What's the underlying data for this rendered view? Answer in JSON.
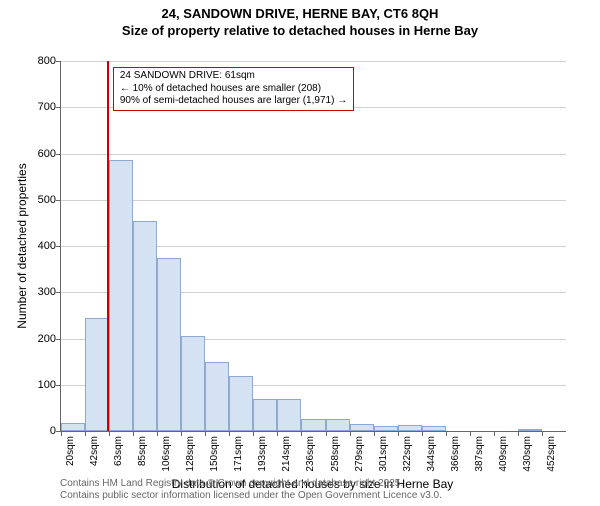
{
  "title_line1": "24, SANDOWN DRIVE, HERNE BAY, CT6 8QH",
  "title_line2": "Size of property relative to detached houses in Herne Bay",
  "chart": {
    "type": "histogram",
    "xlabel": "Distribution of detached houses by size in Herne Bay",
    "ylabel": "Number of detached properties",
    "ylim": [
      0,
      800
    ],
    "ytick_step": 100,
    "bar_fill": "#d4e2f4",
    "bar_border": "#8ea8d0",
    "grid_color": "#d0d0d0",
    "background_color": "#ffffff",
    "marker_color": "#cc0000",
    "marker_x_value": 61,
    "x_start": 20,
    "x_step": 21.5,
    "x_labels": [
      "20sqm",
      "42sqm",
      "63sqm",
      "85sqm",
      "106sqm",
      "128sqm",
      "150sqm",
      "171sqm",
      "193sqm",
      "214sqm",
      "236sqm",
      "258sqm",
      "279sqm",
      "301sqm",
      "322sqm",
      "344sqm",
      "366sqm",
      "387sqm",
      "409sqm",
      "430sqm",
      "452sqm"
    ],
    "values": [
      18,
      245,
      585,
      455,
      375,
      205,
      150,
      120,
      70,
      70,
      25,
      25,
      15,
      10,
      12,
      10,
      0,
      0,
      0,
      5,
      0
    ],
    "annotation": {
      "line1": "24 SANDOWN DRIVE: 61sqm",
      "line2": "← 10% of detached houses are smaller (208)",
      "line3": "90% of semi-detached houses are larger (1,971) →"
    }
  },
  "footnote1": "Contains HM Land Registry data © Crown copyright and database right 2025.",
  "footnote2": "Contains public sector information licensed under the Open Government Licence v3.0."
}
